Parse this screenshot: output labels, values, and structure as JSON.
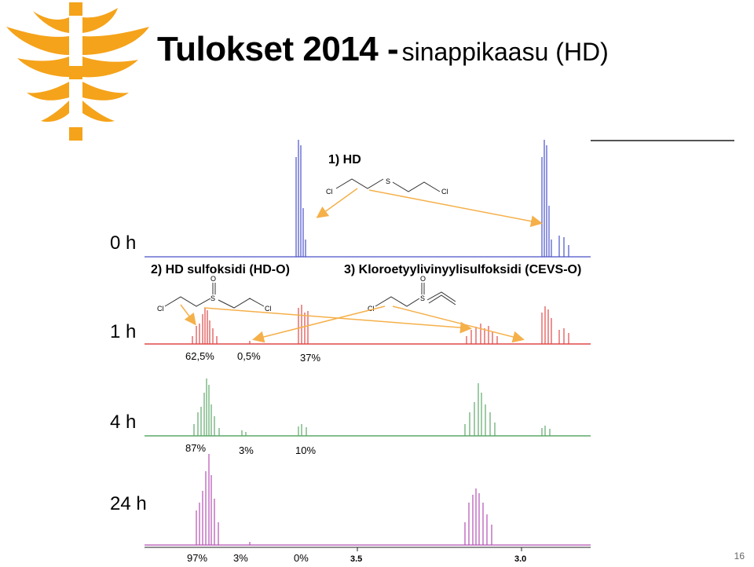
{
  "title": {
    "main": "Tulokset 2014 -",
    "sub": "sinappikaasu (HD)"
  },
  "time_labels": [
    "0 h",
    "1 h",
    "4 h",
    "24 h"
  ],
  "compounds": {
    "hd": "1) HD",
    "hd_sulfoxide": "2) HD sulfoksidi (HD-O)",
    "cevs": "3) Kloroetyylivinyylisulfoksidi (CEVS-O)"
  },
  "atoms": {
    "cl": "Cl",
    "s": "S",
    "o": "O"
  },
  "percentages": {
    "h1": [
      "62,5%",
      "0,5%",
      "37%"
    ],
    "h4": [
      "87%",
      "3%",
      "10%"
    ],
    "h24": [
      "97%",
      "3%",
      "0%"
    ]
  },
  "axis_ticks": [
    "3.5",
    "3.0"
  ],
  "page_number": "16",
  "colors": {
    "logo": "#f5a31a",
    "spectrum_0h": "#4a52c8",
    "spectrum_1h": "#e04848",
    "spectrum_4h": "#5fa86a",
    "spectrum_24h": "#b450b4",
    "arrow": "#f5b04a"
  }
}
